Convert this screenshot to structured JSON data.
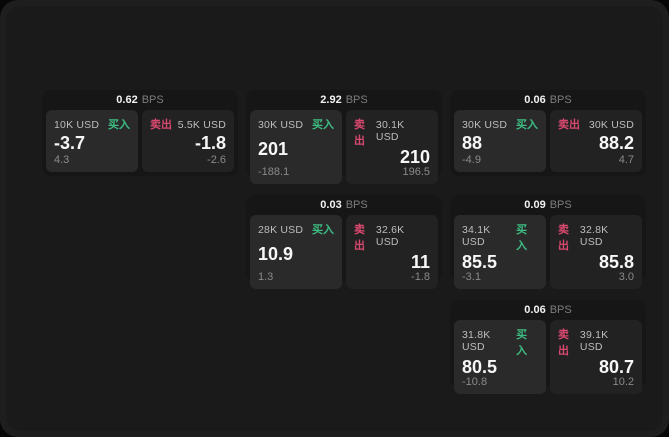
{
  "labels": {
    "bps_unit": "BPS",
    "buy": "买入",
    "sell": "卖出"
  },
  "colors": {
    "buy": "#3dbd82",
    "sell": "#d9486e",
    "card_bg": "#161617",
    "panel_buy_bg": "#2a2a2b",
    "panel_sell_bg": "#222223"
  },
  "cards": [
    {
      "bps": "0.62",
      "buy": {
        "amount": "10K USD",
        "value": "-3.7",
        "sub": "4.3"
      },
      "sell": {
        "amount": "5.5K USD",
        "value": "-1.8",
        "sub": "-2.6"
      }
    },
    {
      "bps": "2.92",
      "buy": {
        "amount": "30K USD",
        "value": "201",
        "sub": "-188.1"
      },
      "sell": {
        "amount": "30.1K USD",
        "value": "210",
        "sub": "196.5"
      }
    },
    {
      "bps": "0.06",
      "buy": {
        "amount": "30K USD",
        "value": "88",
        "sub": "-4.9"
      },
      "sell": {
        "amount": "30K USD",
        "value": "88.2",
        "sub": "4.7"
      }
    },
    {
      "bps": "0.03",
      "buy": {
        "amount": "28K USD",
        "value": "10.9",
        "sub": "1.3"
      },
      "sell": {
        "amount": "32.6K USD",
        "value": "11",
        "sub": "-1.8"
      }
    },
    {
      "bps": "0.09",
      "buy": {
        "amount": "34.1K USD",
        "value": "85.5",
        "sub": "-3.1"
      },
      "sell": {
        "amount": "32.8K USD",
        "value": "85.8",
        "sub": "3.0"
      }
    },
    {
      "bps": "0.06",
      "buy": {
        "amount": "31.8K USD",
        "value": "80.5",
        "sub": "-10.8"
      },
      "sell": {
        "amount": "39.1K USD",
        "value": "80.7",
        "sub": "10.2"
      }
    }
  ]
}
